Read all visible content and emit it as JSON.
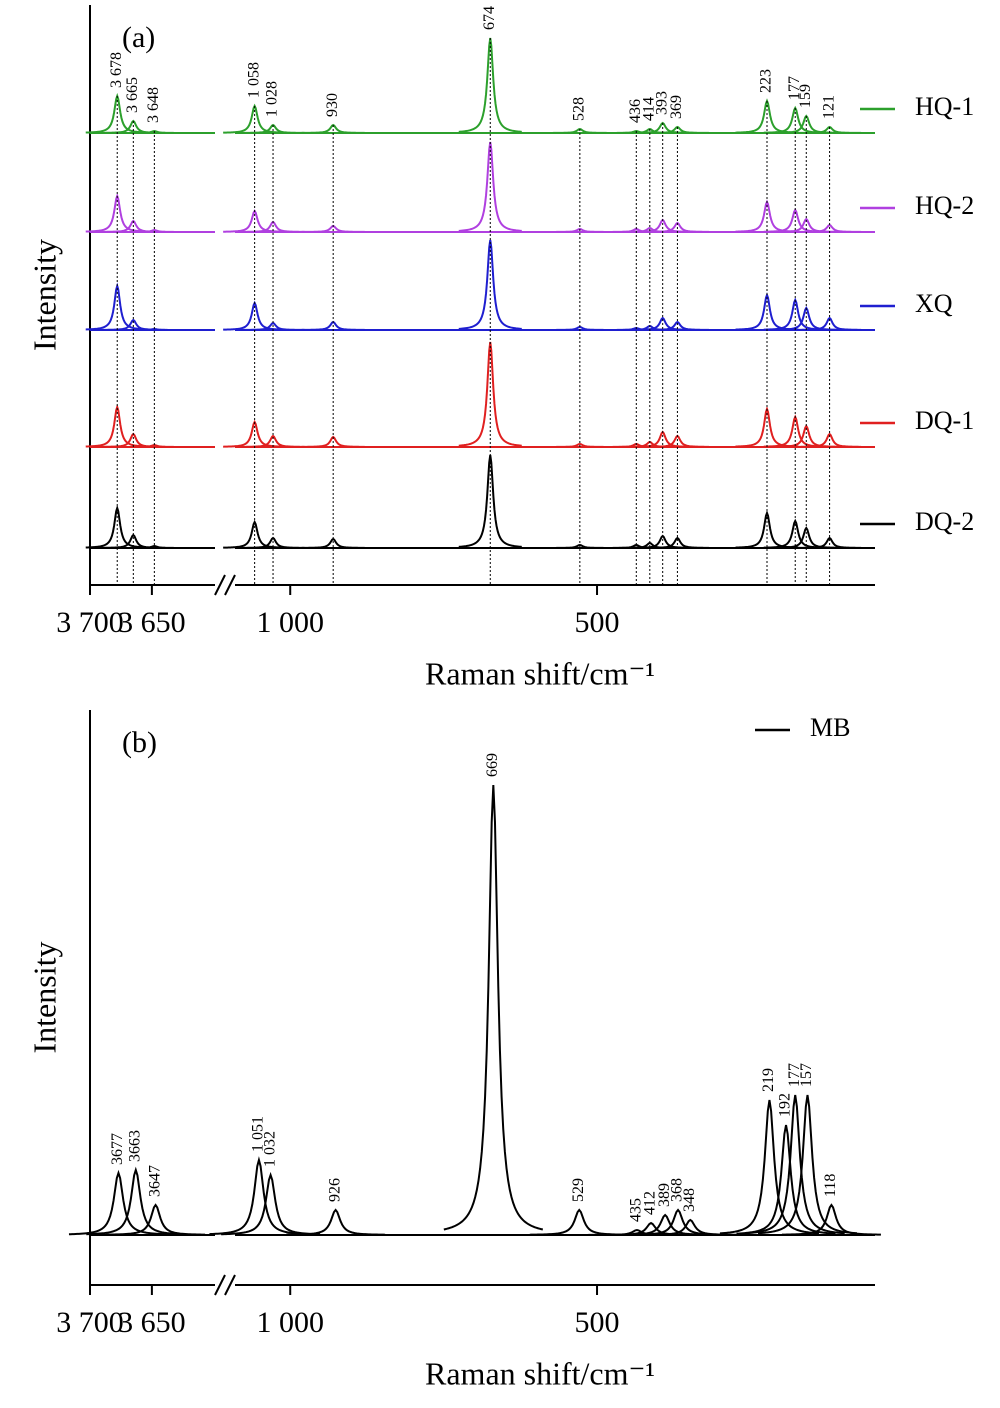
{
  "chart_data": [
    {
      "type": "spectrum",
      "panel_label": "(a)",
      "ylabel": "Intensity",
      "xlabel": "Raman shift/cm⁻¹",
      "xlim": [
        [
          3700,
          3599
        ],
        [
          1090,
          47
        ]
      ],
      "xticks": [
        {
          "value": 3700,
          "label": "3 700"
        },
        {
          "value": 3650,
          "label": "3 650"
        },
        {
          "value": 1000,
          "label": "1 000"
        },
        500
      ],
      "peaks": [
        {
          "value": 3678,
          "label": "3 678"
        },
        {
          "value": 3665,
          "label": "3 665"
        },
        {
          "value": 3648,
          "label": "3 648"
        },
        {
          "value": 1058,
          "label": "1 058"
        },
        {
          "value": 1028,
          "label": "1 028"
        },
        930,
        674,
        528,
        436,
        414,
        393,
        369,
        223,
        177,
        159,
        121
      ],
      "series": [
        {
          "name": "HQ-1",
          "color": "#2ca02c",
          "values": [
            37,
            12,
            2,
            27,
            8,
            8,
            95,
            4,
            2,
            4,
            10,
            6,
            32,
            25,
            17,
            6
          ]
        },
        {
          "name": "HQ-2",
          "color": "#b040e0",
          "values": [
            36,
            11,
            2,
            21,
            10,
            6,
            90,
            3,
            3,
            4,
            12,
            9,
            30,
            22,
            13,
            7
          ]
        },
        {
          "name": "XQ",
          "color": "#1f1fd0",
          "values": [
            44,
            10,
            1,
            27,
            7,
            8,
            90,
            3,
            2,
            4,
            12,
            8,
            35,
            30,
            22,
            12
          ]
        },
        {
          "name": "DQ-1",
          "color": "#e02020",
          "values": [
            40,
            13,
            2,
            25,
            11,
            10,
            105,
            3,
            3,
            5,
            15,
            11,
            38,
            30,
            21,
            13
          ]
        },
        {
          "name": "DQ-2",
          "color": "#000000",
          "values": [
            40,
            13,
            2,
            26,
            10,
            9,
            93,
            3,
            3,
            5,
            12,
            10,
            35,
            27,
            20,
            10
          ]
        }
      ]
    },
    {
      "type": "spectrum",
      "panel_label": "(b)",
      "ylabel": "Intensity",
      "xlabel": "Raman shift/cm⁻¹",
      "xlim": [
        [
          3700,
          3599
        ],
        [
          1090,
          47
        ]
      ],
      "xticks": [
        {
          "value": 3700,
          "label": "3 700"
        },
        {
          "value": 3650,
          "label": "3 650"
        },
        {
          "value": 1000,
          "label": "1 000"
        },
        500
      ],
      "peaks": [
        3677,
        3663,
        3647,
        {
          "value": 1051,
          "label": "1 051"
        },
        {
          "value": 1032,
          "label": "1 032"
        },
        926,
        669,
        529,
        435,
        412,
        389,
        368,
        348,
        219,
        192,
        177,
        157,
        118
      ],
      "series": [
        {
          "name": "MB",
          "color": "#000000",
          "values": [
            62,
            65,
            30,
            75,
            60,
            25,
            450,
            25,
            5,
            12,
            20,
            25,
            15,
            135,
            110,
            140,
            140,
            30
          ]
        }
      ]
    }
  ]
}
